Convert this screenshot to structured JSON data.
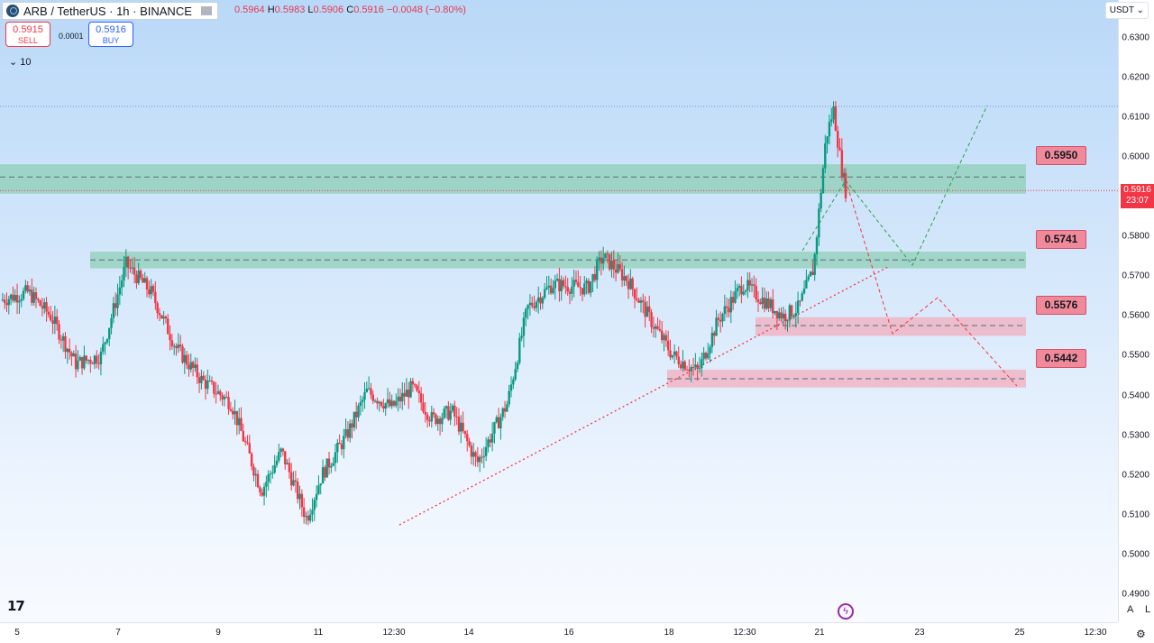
{
  "legend": {
    "title": "ARB / TetherUS · 1h · BINANCE"
  },
  "ohlc": {
    "open_label": "O",
    "open": "0.5964",
    "high_label": "H",
    "high": "0.5983",
    "low_label": "L",
    "low": "0.5906",
    "close_label": "C",
    "close": "0.5916",
    "change": "−0.0048 (−0.80%)"
  },
  "trade": {
    "sell_price": "0.5915",
    "sell_label": "SELL",
    "spread": "0.0001",
    "buy_price": "0.5916",
    "buy_label": "BUY"
  },
  "indicators_label": "10",
  "currency": "USDT",
  "current_price": "0.5916",
  "countdown": "23:07",
  "colors": {
    "up": "#089981",
    "down": "#f23645",
    "support_zone": "#8fcfb5",
    "demand_zone": "#f2aebd"
  },
  "chart_data": {
    "type": "candlestick",
    "y_ticks": [
      "0.6300",
      "0.6200",
      "0.6100",
      "0.6000",
      "0.5900",
      "0.5800",
      "0.5700",
      "0.5600",
      "0.5500",
      "0.5400",
      "0.5300",
      "0.5200",
      "0.5100",
      "0.5000",
      "0.4900"
    ],
    "x_ticks": [
      "5",
      "7",
      "9",
      "11",
      "12:30",
      "14",
      "16",
      "18",
      "12:30",
      "21",
      "23",
      "25",
      "12:30"
    ],
    "ylim": [
      0.486,
      0.6316
    ],
    "levels": [
      {
        "label": "0.5950",
        "value": 0.595
      },
      {
        "label": "0.5741",
        "value": 0.5741
      },
      {
        "label": "0.5576",
        "value": 0.5576
      },
      {
        "label": "0.5442",
        "value": 0.5442
      }
    ],
    "path_points": [
      [
        0.0,
        0.564
      ],
      [
        0.55,
        0.566
      ],
      [
        1.0,
        0.56
      ],
      [
        1.5,
        0.548
      ],
      [
        2.0,
        0.55
      ],
      [
        2.5,
        0.573
      ],
      [
        3.0,
        0.566
      ],
      [
        3.5,
        0.552
      ],
      [
        4.0,
        0.544
      ],
      [
        4.6,
        0.538
      ],
      [
        5.2,
        0.516
      ],
      [
        5.6,
        0.526
      ],
      [
        6.1,
        0.509
      ],
      [
        6.4,
        0.52
      ],
      [
        6.9,
        0.53
      ],
      [
        7.3,
        0.541
      ],
      [
        7.8,
        0.537
      ],
      [
        8.2,
        0.542
      ],
      [
        8.6,
        0.534
      ],
      [
        9.0,
        0.536
      ],
      [
        9.5,
        0.523
      ],
      [
        10.1,
        0.538
      ],
      [
        10.5,
        0.562
      ],
      [
        11.0,
        0.568
      ],
      [
        11.7,
        0.567
      ],
      [
        12.0,
        0.575
      ],
      [
        12.5,
        0.569
      ],
      [
        13.0,
        0.558
      ],
      [
        13.4,
        0.55
      ],
      [
        13.9,
        0.546
      ],
      [
        14.3,
        0.559
      ],
      [
        14.8,
        0.568
      ],
      [
        15.3,
        0.563
      ],
      [
        15.6,
        0.56
      ],
      [
        15.9,
        0.562
      ],
      [
        16.2,
        0.572
      ],
      [
        16.45,
        0.605
      ],
      [
        16.6,
        0.612
      ],
      [
        16.75,
        0.598
      ],
      [
        16.85,
        0.5916
      ]
    ]
  }
}
